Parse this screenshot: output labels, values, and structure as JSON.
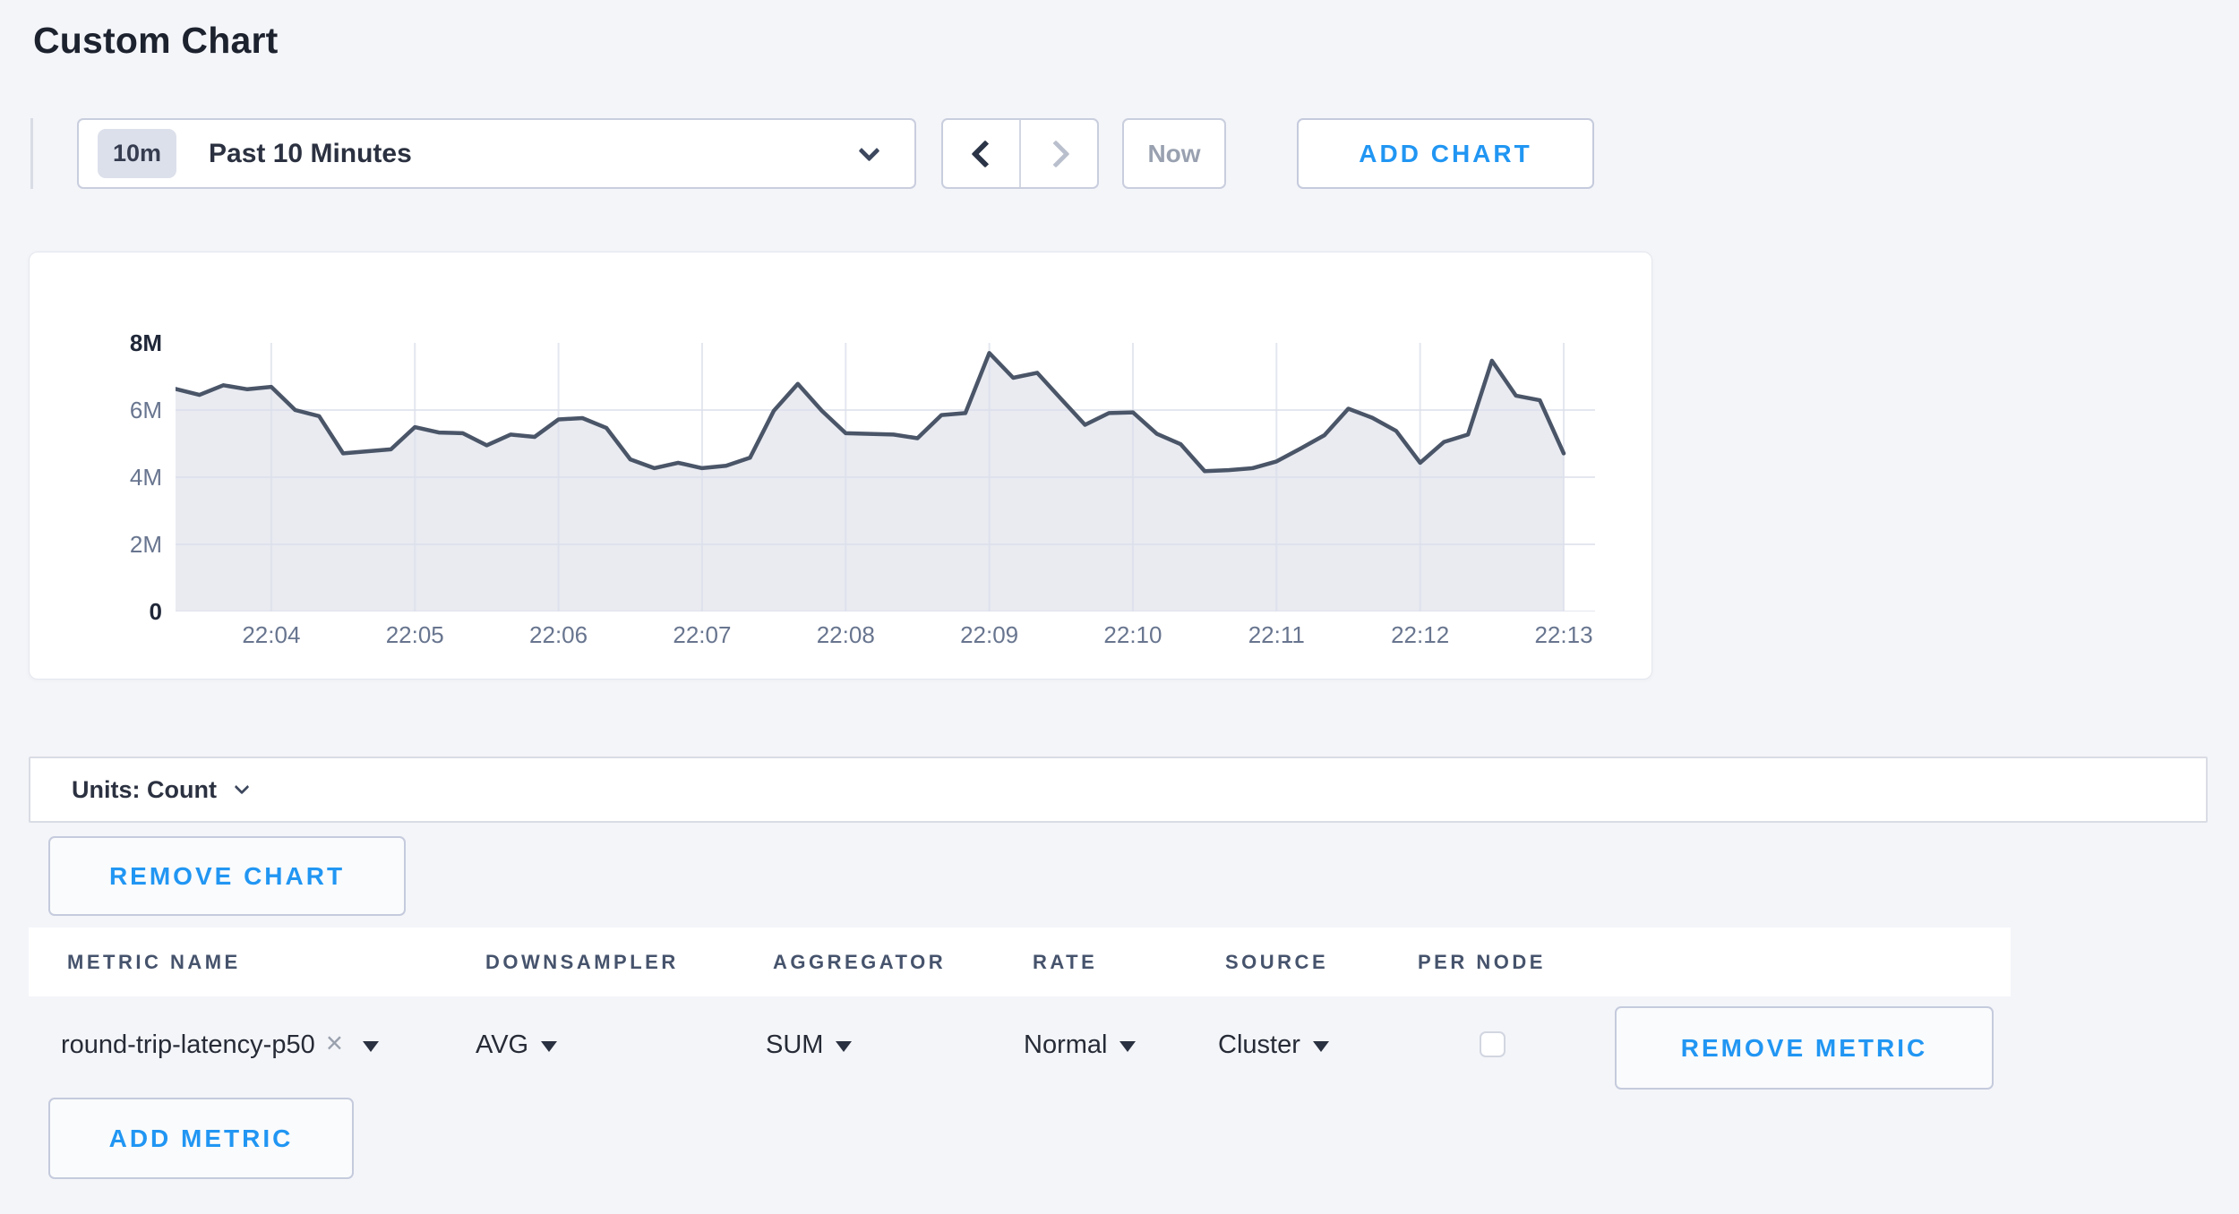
{
  "page": {
    "title": "Custom Chart"
  },
  "toolbar": {
    "timescale_badge": "10m",
    "timescale_label": "Past 10 Minutes",
    "prev_icon": "chevron-left",
    "next_icon": "chevron-right",
    "now_label": "Now",
    "add_chart_label": "ADD CHART"
  },
  "units": {
    "label": "Units: Count"
  },
  "buttons": {
    "remove_chart_label": "REMOVE CHART",
    "remove_metric_label": "REMOVE METRIC",
    "add_metric_label": "ADD METRIC"
  },
  "table": {
    "headers": [
      "METRIC NAME",
      "DOWNSAMPLER",
      "AGGREGATOR",
      "RATE",
      "SOURCE",
      "PER NODE"
    ],
    "row": {
      "metric_name": "round-trip-latency-p50",
      "clear_icon": "×",
      "downsampler": "AVG",
      "aggregator": "SUM",
      "rate": "Normal",
      "source": "Cluster",
      "per_node_checked": false
    }
  },
  "colors": {
    "accent_blue": "#2196f3",
    "line": "#4a5568",
    "area_fill": "#e9ebf1",
    "gridline": "#dbdfe9",
    "page_background": "#f4f5f9"
  },
  "chart_data": {
    "type": "area",
    "title": "",
    "ylabel": "count",
    "x_ticks": [
      "22:04",
      "22:05",
      "22:06",
      "22:07",
      "22:08",
      "22:09",
      "22:10",
      "22:11",
      "22:12",
      "22:13"
    ],
    "y_ticks": [
      "8M",
      "6M",
      "4M",
      "2M",
      "0"
    ],
    "ylim": [
      0,
      8000000
    ],
    "x_start": "22:03:20",
    "x_interval_seconds": 10,
    "x_total_seconds": 580,
    "first_tick_offset_seconds": 40,
    "tick_step_seconds": 60,
    "grid": true,
    "legend": "none",
    "values": [
      6630000,
      6450000,
      6740000,
      6620000,
      6690000,
      6000000,
      5820000,
      4710000,
      4770000,
      4830000,
      5490000,
      5330000,
      5310000,
      4950000,
      5270000,
      5200000,
      5720000,
      5760000,
      5470000,
      4530000,
      4270000,
      4430000,
      4270000,
      4340000,
      4580000,
      5980000,
      6780000,
      5980000,
      5310000,
      5290000,
      5270000,
      5160000,
      5850000,
      5910000,
      7700000,
      6960000,
      7110000,
      6330000,
      5560000,
      5910000,
      5930000,
      5290000,
      4980000,
      4180000,
      4210000,
      4270000,
      4470000,
      4850000,
      5250000,
      6040000,
      5770000,
      5380000,
      4430000,
      5050000,
      5270000,
      7470000,
      6430000,
      6290000,
      4710000
    ]
  }
}
